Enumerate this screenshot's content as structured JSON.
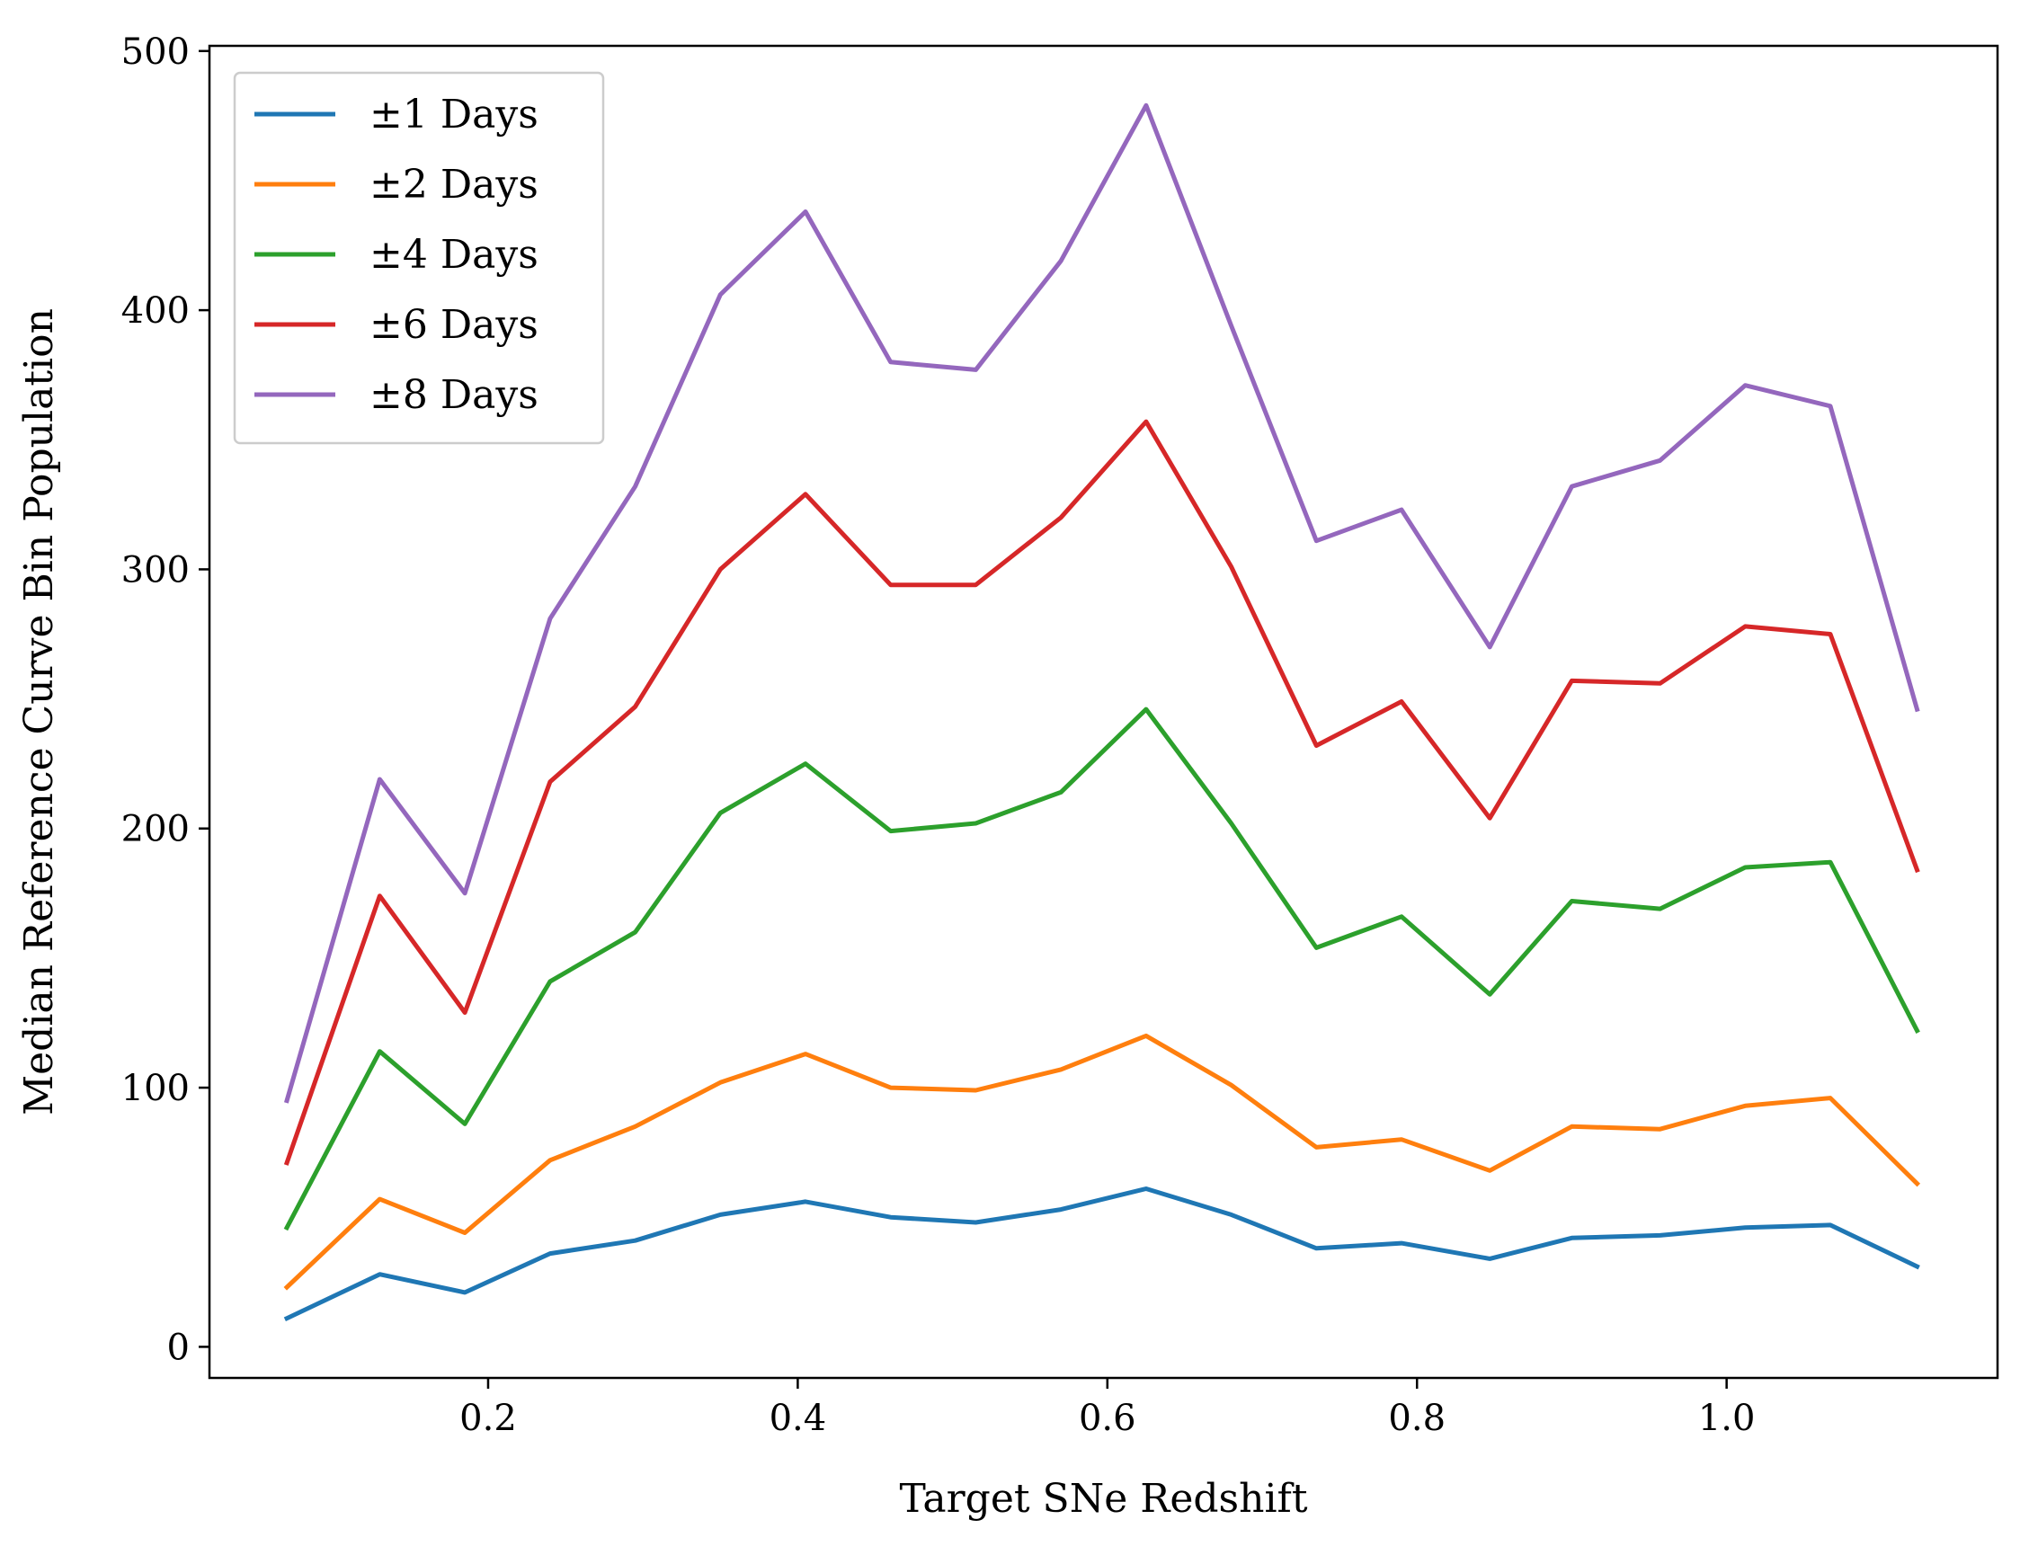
{
  "chart_data": {
    "type": "line",
    "title": "",
    "xlabel": "Target SNe Redshift",
    "ylabel": "Median Reference Curve Bin Population",
    "xlim": [
      0.02,
      1.175
    ],
    "ylim": [
      -12,
      502
    ],
    "xticks": [
      0.2,
      0.4,
      0.6,
      0.8,
      1.0
    ],
    "xtick_labels": [
      "0.2",
      "0.4",
      "0.6",
      "0.8",
      "1.0"
    ],
    "yticks": [
      0,
      100,
      200,
      300,
      400,
      500
    ],
    "ytick_labels": [
      "0",
      "100",
      "200",
      "300",
      "400",
      "500"
    ],
    "grid": false,
    "legend_position": "top-left",
    "x": [
      0.07,
      0.13,
      0.185,
      0.24,
      0.295,
      0.35,
      0.405,
      0.46,
      0.515,
      0.57,
      0.625,
      0.68,
      0.735,
      0.79,
      0.847,
      0.9,
      0.957,
      1.012,
      1.067,
      1.123
    ],
    "series": [
      {
        "name": "±1 Days",
        "color": "#1f77b4",
        "values": [
          11,
          28,
          21,
          36,
          41,
          51,
          56,
          50,
          48,
          53,
          61,
          51,
          38,
          40,
          34,
          42,
          43,
          46,
          47,
          31
        ]
      },
      {
        "name": "±2 Days",
        "color": "#ff7f0e",
        "values": [
          23,
          57,
          44,
          72,
          85,
          102,
          113,
          100,
          99,
          107,
          120,
          101,
          77,
          80,
          68,
          85,
          84,
          93,
          96,
          63
        ]
      },
      {
        "name": "±4 Days",
        "color": "#2ca02c",
        "values": [
          46,
          114,
          86,
          141,
          160,
          206,
          225,
          199,
          202,
          214,
          246,
          202,
          154,
          166,
          136,
          172,
          169,
          185,
          187,
          122
        ]
      },
      {
        "name": "±6 Days",
        "color": "#d62728",
        "values": [
          71,
          174,
          129,
          218,
          247,
          300,
          329,
          294,
          294,
          320,
          357,
          301,
          232,
          249,
          204,
          257,
          256,
          278,
          275,
          184
        ]
      },
      {
        "name": "±8 Days",
        "color": "#9467bd",
        "values": [
          95,
          219,
          175,
          281,
          332,
          406,
          438,
          380,
          377,
          419,
          479,
          394,
          311,
          323,
          270,
          332,
          342,
          371,
          363,
          246
        ]
      }
    ]
  }
}
